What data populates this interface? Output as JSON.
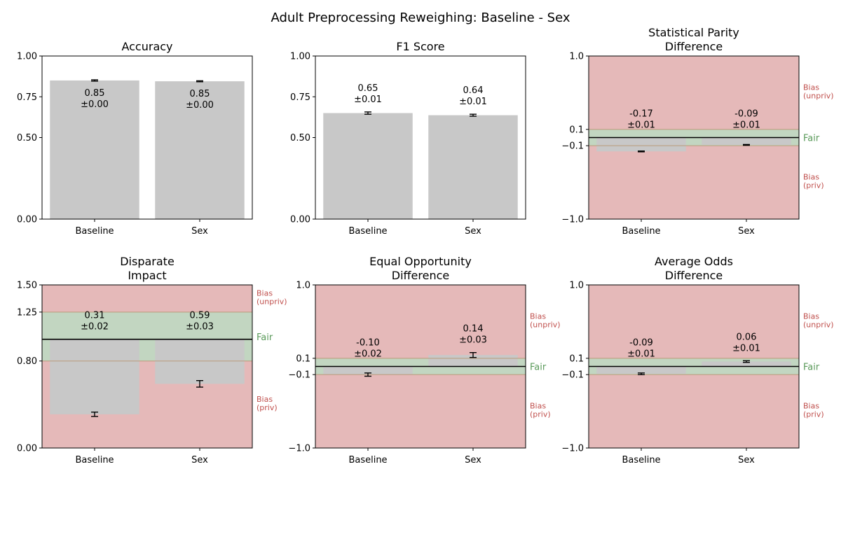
{
  "figure": {
    "title": "Adult Preprocessing Reweighing: Baseline - Sex"
  },
  "colors": {
    "bar": "#c8c8c8",
    "bias_region": "#e5b9b9",
    "fair_region": "#c2d6c1",
    "bias_label": "#c0504d",
    "fair_label": "#5a9a5a",
    "boundary_line": "#b99a7a",
    "ideal_line": "#000000"
  },
  "region_labels": {
    "bias_unpriv": [
      "Bias",
      "(unpriv)"
    ],
    "bias_priv": [
      "Bias",
      "(priv)"
    ],
    "fair": "Fair"
  },
  "chart_data": [
    {
      "type": "bar",
      "title": [
        "Accuracy"
      ],
      "categories": [
        "Baseline",
        "Sex"
      ],
      "values": [
        0.85,
        0.845
      ],
      "errors": [
        0.004,
        0.003
      ],
      "data_labels": [
        [
          "0.85",
          "±0.00"
        ],
        [
          "0.85",
          "±0.00"
        ]
      ],
      "label_inside": true,
      "ylim": [
        0,
        1
      ],
      "yticks": [
        0,
        0.5,
        0.75,
        1.0
      ],
      "ytick_labels": [
        "0.00",
        "0.50",
        "0.75",
        "1.00"
      ],
      "fairness": null
    },
    {
      "type": "bar",
      "title": [
        "F1 Score"
      ],
      "categories": [
        "Baseline",
        "Sex"
      ],
      "values": [
        0.65,
        0.637
      ],
      "errors": [
        0.007,
        0.006
      ],
      "data_labels": [
        [
          "0.65",
          "±0.01"
        ],
        [
          "0.64",
          "±0.01"
        ]
      ],
      "label_inside": false,
      "ylim": [
        0,
        1
      ],
      "yticks": [
        0,
        0.5,
        0.75,
        1.0
      ],
      "ytick_labels": [
        "0.00",
        "0.50",
        "0.75",
        "1.00"
      ],
      "fairness": null
    },
    {
      "type": "bar",
      "title": [
        "Statistical Parity",
        "Difference"
      ],
      "categories": [
        "Baseline",
        "Sex"
      ],
      "values": [
        -0.17,
        -0.09
      ],
      "errors": [
        0.005,
        0.005
      ],
      "data_labels": [
        [
          "-0.17",
          "±0.01"
        ],
        [
          "-0.09",
          "±0.01"
        ]
      ],
      "label_inside": false,
      "ylim": [
        -1,
        1
      ],
      "yticks": [
        -1.0,
        -0.1,
        0.1,
        1.0
      ],
      "ytick_labels": [
        "−1.0",
        "−0.1",
        "0.1",
        "1.0"
      ],
      "fairness": {
        "ideal": 0,
        "fair_range": [
          -0.1,
          0.1
        ]
      }
    },
    {
      "type": "bar",
      "title": [
        "Disparate",
        "Impact"
      ],
      "categories": [
        "Baseline",
        "Sex"
      ],
      "values": [
        0.31,
        0.59
      ],
      "errors": [
        0.02,
        0.03
      ],
      "data_labels": [
        [
          "0.31",
          "±0.02"
        ],
        [
          "0.59",
          "±0.03"
        ]
      ],
      "label_inside": false,
      "ylim": [
        0,
        1.5
      ],
      "yticks": [
        0,
        0.8,
        1.25,
        1.5
      ],
      "ytick_labels": [
        "0.00",
        "0.80",
        "1.25",
        "1.50"
      ],
      "fairness": {
        "ideal": 1.0,
        "fair_range": [
          0.8,
          1.25
        ]
      }
    },
    {
      "type": "bar",
      "title": [
        "Equal Opportunity",
        "Difference"
      ],
      "categories": [
        "Baseline",
        "Sex"
      ],
      "values": [
        -0.1,
        0.14
      ],
      "errors": [
        0.02,
        0.03
      ],
      "data_labels": [
        [
          "-0.10",
          "±0.02"
        ],
        [
          "0.14",
          "±0.03"
        ]
      ],
      "label_inside": false,
      "ylim": [
        -1,
        1
      ],
      "yticks": [
        -1.0,
        -0.1,
        0.1,
        1.0
      ],
      "ytick_labels": [
        "−1.0",
        "−0.1",
        "0.1",
        "1.0"
      ],
      "fairness": {
        "ideal": 0,
        "fair_range": [
          -0.1,
          0.1
        ]
      }
    },
    {
      "type": "bar",
      "title": [
        "Average Odds",
        "Difference"
      ],
      "categories": [
        "Baseline",
        "Sex"
      ],
      "values": [
        -0.09,
        0.06
      ],
      "errors": [
        0.01,
        0.01
      ],
      "data_labels": [
        [
          "-0.09",
          "±0.01"
        ],
        [
          "0.06",
          "±0.01"
        ]
      ],
      "label_inside": false,
      "ylim": [
        -1,
        1
      ],
      "yticks": [
        -1.0,
        -0.1,
        0.1,
        1.0
      ],
      "ytick_labels": [
        "−1.0",
        "−0.1",
        "0.1",
        "1.0"
      ],
      "fairness": {
        "ideal": 0,
        "fair_range": [
          -0.1,
          0.1
        ]
      }
    }
  ]
}
